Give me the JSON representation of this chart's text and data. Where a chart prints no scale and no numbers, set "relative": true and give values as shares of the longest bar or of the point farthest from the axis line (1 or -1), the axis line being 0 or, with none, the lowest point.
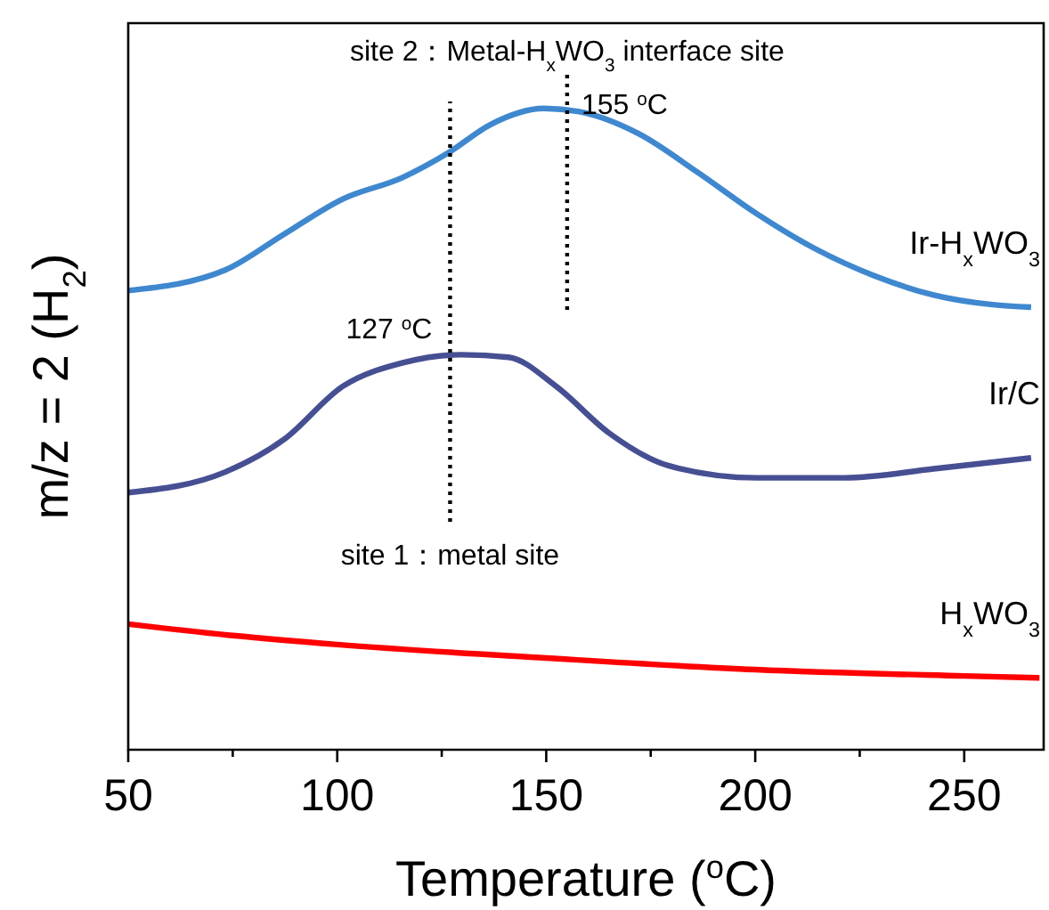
{
  "chart_data": {
    "type": "line",
    "relative": true,
    "xlabel": "Temperature ($^{o}$C)",
    "ylabel": "m/z = 2 (H$_{2}$)",
    "xlim": [
      50,
      269
    ],
    "xticks": [
      50,
      {
        "value": 75,
        "label": null
      },
      100,
      {
        "value": 125,
        "label": null
      },
      150,
      {
        "value": 175,
        "label": null
      },
      200,
      {
        "value": 225,
        "label": null
      },
      250
    ],
    "series": [
      {
        "name": "Ir-H$_{x}$WO$_{3}$",
        "color": "#3f88cf",
        "x": [
          50,
          73.2,
          87.3,
          101.4,
          115.5,
          126.6,
          136.7,
          149.4,
          157.9,
          172,
          186.1,
          200.3,
          214.4,
          228.5,
          242.7,
          256.8,
          266
        ],
        "values": [
          0.716,
          0.748,
          0.804,
          0.859,
          0.892,
          0.931,
          0.975,
          1.0,
          0.995,
          0.961,
          0.901,
          0.836,
          0.781,
          0.739,
          0.709,
          0.694,
          0.69
        ]
      },
      {
        "name": "Ir/C",
        "color": "#474f93",
        "x": [
          50,
          73.2,
          87.3,
          101.4,
          115.5,
          129.7,
          141,
          152.3,
          165,
          179.2,
          200.3,
          221.5,
          242.7,
          266
        ],
        "values": [
          0.401,
          0.433,
          0.484,
          0.567,
          0.603,
          0.616,
          0.612,
          0.567,
          0.494,
          0.443,
          0.424,
          0.424,
          0.438,
          0.455
        ]
      },
      {
        "name": "H$_{x}$WO$_{3}$",
        "color": "#ff0000",
        "x": [
          50,
          75.1,
          100,
          150,
          200,
          250,
          268
        ],
        "values": [
          0.196,
          0.178,
          0.164,
          0.143,
          0.125,
          0.115,
          0.112
        ]
      }
    ],
    "ref_lines": [
      {
        "axis": "x",
        "value": 127,
        "label": "127 $^{o}$C",
        "line_style": "dotted"
      },
      {
        "axis": "x",
        "value": 155,
        "label": "155 $^{o}$C",
        "line_style": "dotted"
      }
    ],
    "annotations": [
      "site 1：metal site",
      "site 2：Metal-H$_{x}$WO$_{3}$ interface site"
    ]
  }
}
